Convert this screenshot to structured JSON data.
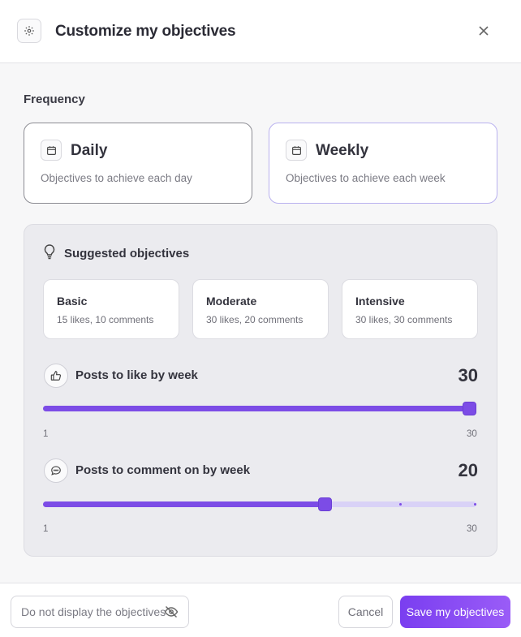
{
  "header": {
    "title": "Customize my objectives",
    "settings_icon": "gear-icon",
    "close_icon": "close-icon"
  },
  "frequency": {
    "label": "Frequency",
    "selected": "Weekly",
    "options": [
      {
        "title": "Daily",
        "description": "Objectives to achieve each day",
        "icon": "calendar-icon"
      },
      {
        "title": "Weekly",
        "description": "Objectives to achieve each week",
        "icon": "calendar-icon"
      }
    ]
  },
  "suggested": {
    "label": "Suggested objectives",
    "icon": "lightbulb-icon",
    "presets": [
      {
        "name": "Basic",
        "description": "15 likes, 10 comments"
      },
      {
        "name": "Moderate",
        "description": "30 likes, 20 comments"
      },
      {
        "name": "Intensive",
        "description": "30 likes, 30 comments"
      }
    ]
  },
  "sliders": [
    {
      "label": "Posts to like by week",
      "icon": "thumbs-up-icon",
      "value": "30",
      "value_num": 30,
      "min": "1",
      "max": "30",
      "min_num": 1,
      "max_num": 30
    },
    {
      "label": "Posts to comment on by week",
      "icon": "comment-icon",
      "value": "20",
      "value_num": 20,
      "min": "1",
      "max": "30",
      "min_num": 1,
      "max_num": 30
    }
  ],
  "footer": {
    "hide_label": "Do not display the objectives",
    "hide_icon": "eye-off-icon",
    "cancel_label": "Cancel",
    "save_label": "Save my objectives"
  },
  "colors": {
    "accent": "#7c4ce6",
    "accent_light": "#d9d2f7",
    "selected_border": "#b9b1ef"
  }
}
